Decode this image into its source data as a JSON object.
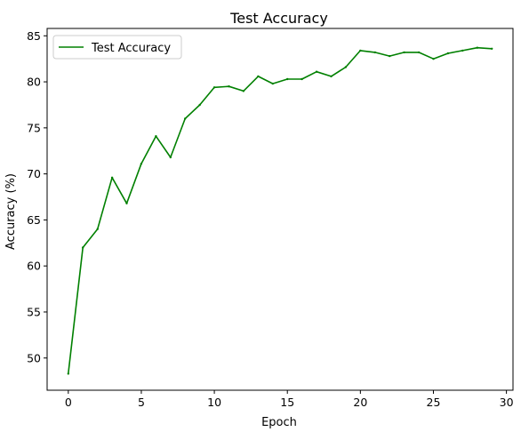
{
  "chart_data": {
    "type": "line",
    "title": "Test Accuracy",
    "xlabel": "Epoch",
    "ylabel": "Accuracy (%)",
    "xlim": [
      -1.45,
      30.45
    ],
    "ylim": [
      46.5,
      85.8
    ],
    "xticks": [
      0,
      5,
      10,
      15,
      20,
      25,
      30
    ],
    "yticks": [
      50,
      55,
      60,
      65,
      70,
      75,
      80,
      85
    ],
    "xtick_labels": [
      "0",
      "5",
      "10",
      "15",
      "20",
      "25",
      "30"
    ],
    "ytick_labels": [
      "50",
      "55",
      "60",
      "65",
      "70",
      "75",
      "80",
      "85"
    ],
    "grid": false,
    "legend_position": "top-left",
    "series": [
      {
        "name": "Test Accuracy",
        "color": "#008000",
        "x": [
          0,
          1,
          2,
          3,
          4,
          5,
          6,
          7,
          8,
          9,
          10,
          11,
          12,
          13,
          14,
          15,
          16,
          17,
          18,
          19,
          20,
          21,
          22,
          23,
          24,
          25,
          26,
          27,
          28,
          29
        ],
        "y": [
          48.3,
          62.0,
          64.0,
          69.6,
          66.8,
          71.1,
          74.1,
          71.8,
          76.0,
          77.5,
          79.4,
          79.5,
          79.0,
          80.6,
          79.8,
          80.3,
          80.3,
          81.1,
          80.6,
          81.6,
          83.4,
          83.2,
          82.8,
          83.2,
          83.2,
          82.5,
          83.1,
          83.4,
          83.7,
          83.6
        ]
      }
    ]
  }
}
